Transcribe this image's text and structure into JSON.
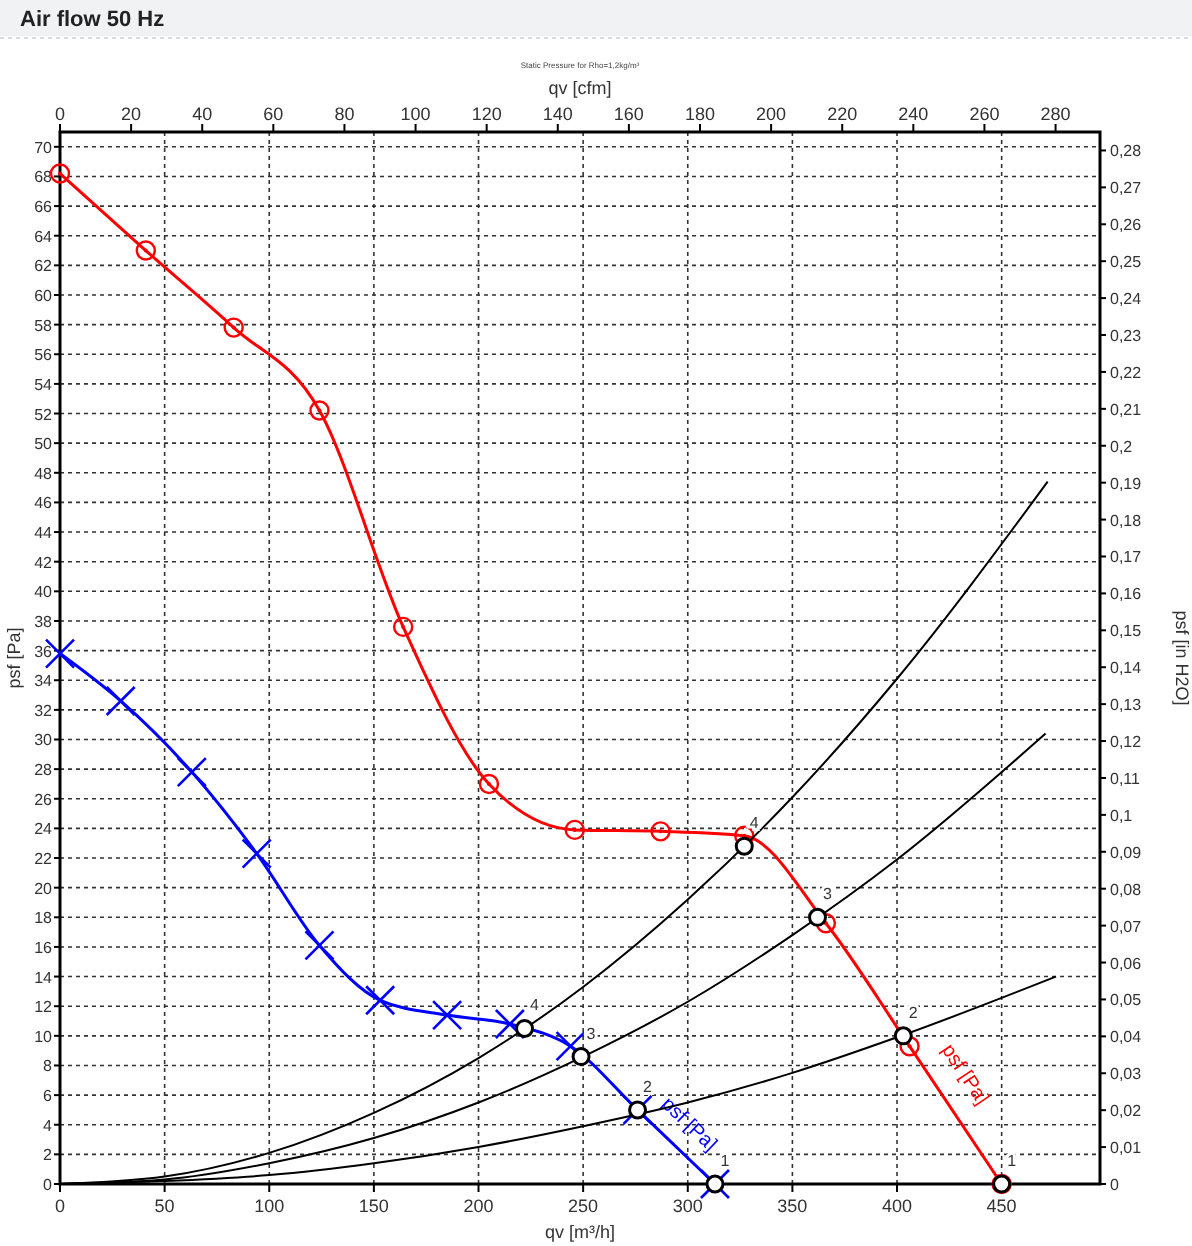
{
  "chart_data": {
    "type": "line",
    "title": "Air flow 50 Hz",
    "subtitle": "Static Pressure for Rho=1,2kg/m³",
    "xlabel": "qv [m³/h]",
    "x2label": "qv [cfm]",
    "ylabel": "psf [Pa]",
    "y2label": "psf [in H2O]",
    "xlim": [
      0,
      497
    ],
    "xticks": [
      0,
      50,
      100,
      150,
      200,
      250,
      300,
      350,
      400,
      450
    ],
    "x2lim": [
      0,
      292.5
    ],
    "x2ticks": [
      0,
      20,
      40,
      60,
      80,
      100,
      120,
      140,
      160,
      180,
      200,
      220,
      240,
      260,
      280
    ],
    "ylim": [
      0,
      71
    ],
    "yticks": [
      0,
      2,
      4,
      6,
      8,
      10,
      12,
      14,
      16,
      18,
      20,
      22,
      24,
      26,
      28,
      30,
      32,
      34,
      36,
      38,
      40,
      42,
      44,
      46,
      48,
      50,
      52,
      54,
      56,
      58,
      60,
      62,
      64,
      66,
      68,
      70
    ],
    "y2lim": [
      0,
      0.285
    ],
    "y2ticks": [
      0,
      {
        "value": 0.01,
        "label": "0,01"
      },
      {
        "value": 0.02,
        "label": "0,02"
      },
      {
        "value": 0.03,
        "label": "0,03"
      },
      {
        "value": 0.04,
        "label": "0,04"
      },
      {
        "value": 0.05,
        "label": "0,05"
      },
      {
        "value": 0.06,
        "label": "0,06"
      },
      {
        "value": 0.07,
        "label": "0,07"
      },
      {
        "value": 0.08,
        "label": "0,08"
      },
      {
        "value": 0.09,
        "label": "0,09"
      },
      {
        "value": 0.1,
        "label": "0,1"
      },
      {
        "value": 0.11,
        "label": "0,11"
      },
      {
        "value": 0.12,
        "label": "0,12"
      },
      {
        "value": 0.13,
        "label": "0,13"
      },
      {
        "value": 0.14,
        "label": "0,14"
      },
      {
        "value": 0.15,
        "label": "0,15"
      },
      {
        "value": 0.16,
        "label": "0,16"
      },
      {
        "value": 0.17,
        "label": "0,17"
      },
      {
        "value": 0.18,
        "label": "0,18"
      },
      {
        "value": 0.19,
        "label": "0,19"
      },
      {
        "value": 0.2,
        "label": "0,2"
      },
      {
        "value": 0.21,
        "label": "0,21"
      },
      {
        "value": 0.22,
        "label": "0,22"
      },
      {
        "value": 0.23,
        "label": "0,23"
      },
      {
        "value": 0.24,
        "label": "0,24"
      },
      {
        "value": 0.25,
        "label": "0,25"
      },
      {
        "value": 0.26,
        "label": "0,26"
      },
      {
        "value": 0.27,
        "label": "0,27"
      },
      {
        "value": 0.28,
        "label": "0,28"
      }
    ],
    "grid": true,
    "series": [
      {
        "name": "psf [Pa]",
        "color": "#ff0000",
        "marker": "circle",
        "x": [
          0,
          41,
          83,
          124,
          164,
          205,
          246,
          287,
          327,
          366,
          406,
          450
        ],
        "values": [
          68.2,
          63.0,
          57.8,
          52.2,
          37.6,
          27.0,
          23.9,
          23.8,
          23.5,
          17.6,
          9.3,
          0
        ]
      },
      {
        "name": "psf [Pa]",
        "color": "#0000ff",
        "marker": "cross",
        "x": [
          0,
          29,
          63,
          94,
          124,
          153,
          185,
          215,
          244,
          276,
          313
        ],
        "values": [
          35.8,
          32.6,
          27.8,
          22.3,
          16.1,
          12.4,
          11.4,
          10.8,
          9.3,
          5.0,
          0
        ]
      },
      {
        "color": "#000000",
        "marker": "none",
        "x": [
          0,
          50,
          100,
          150,
          200,
          250,
          300,
          350,
          400,
          472
        ],
        "values": [
          0,
          0.5,
          2.1,
          4.8,
          8.5,
          13.3,
          19.2,
          26.1,
          34.1,
          47.4
        ]
      },
      {
        "color": "#000000",
        "marker": "none",
        "x": [
          0,
          50,
          100,
          150,
          200,
          250,
          300,
          350,
          400,
          471
        ],
        "values": [
          0,
          0.3,
          1.4,
          3.1,
          5.5,
          8.6,
          12.3,
          16.8,
          21.9,
          30.4
        ]
      },
      {
        "color": "#000000",
        "marker": "none",
        "x": [
          0,
          50,
          100,
          150,
          200,
          250,
          300,
          350,
          400,
          476
        ],
        "values": [
          0,
          0.2,
          0.6,
          1.4,
          2.5,
          3.9,
          5.5,
          7.5,
          9.9,
          14.0
        ]
      },
      {
        "type": "scatter",
        "color": "#000000",
        "marker": "circle",
        "x": [
          327,
          362,
          403,
          450,
          222,
          249,
          276,
          313
        ],
        "values": [
          22.8,
          18.0,
          10.0,
          0,
          10.5,
          8.6,
          5.0,
          0
        ]
      }
    ],
    "annotations": [
      {
        "text": "4",
        "x": 327,
        "y": 22.8
      },
      {
        "text": "3",
        "x": 362,
        "y": 18.0
      },
      {
        "text": "2",
        "x": 403,
        "y": 10.0
      },
      {
        "text": "1",
        "x": 450,
        "y": 0
      },
      {
        "text": "4",
        "x": 222,
        "y": 10.5
      },
      {
        "text": "3",
        "x": 249,
        "y": 8.6
      },
      {
        "text": "2",
        "x": 276,
        "y": 5.0
      },
      {
        "text": "1",
        "x": 313,
        "y": 0
      }
    ]
  }
}
